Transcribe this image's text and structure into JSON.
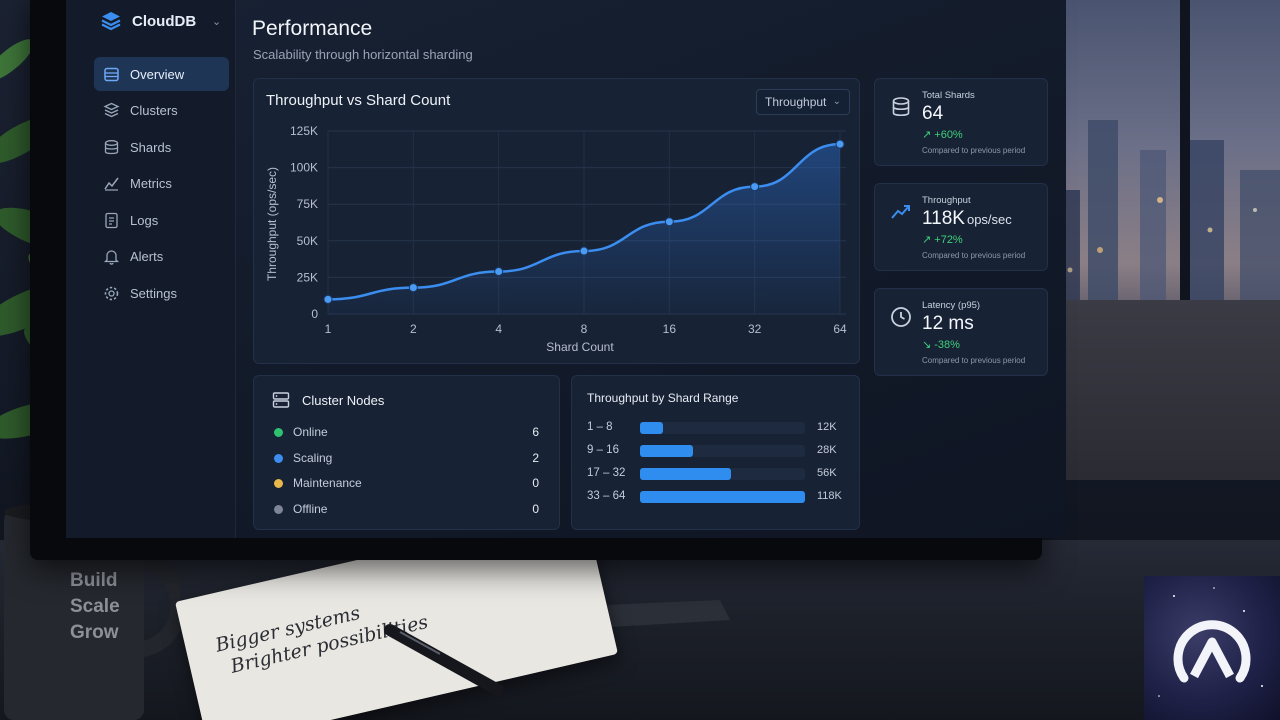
{
  "app": {
    "name": "CloudDB"
  },
  "sidebar": {
    "items": [
      {
        "label": "Overview",
        "icon": "database-table-icon",
        "active": true
      },
      {
        "label": "Clusters",
        "icon": "cluster-icon",
        "active": false
      },
      {
        "label": "Shards",
        "icon": "shards-icon",
        "active": false
      },
      {
        "label": "Metrics",
        "icon": "metrics-icon",
        "active": false
      },
      {
        "label": "Logs",
        "icon": "logs-icon",
        "active": false
      },
      {
        "label": "Alerts",
        "icon": "bell-icon",
        "active": false
      },
      {
        "label": "Settings",
        "icon": "gear-icon",
        "active": false
      }
    ]
  },
  "header": {
    "title": "Performance",
    "subtitle": "Scalability through horizontal sharding"
  },
  "throughput_chart": {
    "title": "Throughput vs Shard Count",
    "dropdown_value": "Throughput"
  },
  "chart_data": {
    "type": "area",
    "title": "Throughput vs Shard Count",
    "xlabel": "Shard Count",
    "ylabel": "Throughput (ops/sec)",
    "categories": [
      "1",
      "2",
      "4",
      "8",
      "16",
      "32",
      "64"
    ],
    "values": [
      10000,
      18000,
      29000,
      43000,
      63000,
      87000,
      116000
    ],
    "yticks": [
      "0",
      "25K",
      "50K",
      "75K",
      "100K",
      "125K"
    ],
    "ylim": [
      0,
      125000
    ],
    "grid": true,
    "color": "#3b8ef0"
  },
  "kpis": [
    {
      "label": "Total Shards",
      "value": "64",
      "unit": "",
      "delta": "↗ +60%",
      "note": "Compared to previous period",
      "icon": "database-icon"
    },
    {
      "label": "Throughput",
      "value": "118K",
      "unit": "ops/sec",
      "delta": "↗ +72%",
      "note": "Compared to previous period",
      "icon": "trend-up-icon"
    },
    {
      "label": "Latency (p95)",
      "value": "12 ms",
      "unit": "",
      "delta": "↘ -38%",
      "note": "Compared to previous period",
      "icon": "clock-icon"
    }
  ],
  "cluster_nodes": {
    "title": "Cluster Nodes",
    "rows": [
      {
        "label": "Online",
        "count": "6",
        "color": "#2ec16f"
      },
      {
        "label": "Scaling",
        "count": "2",
        "color": "#3b8ef0"
      },
      {
        "label": "Maintenance",
        "count": "0",
        "color": "#e8b94a"
      },
      {
        "label": "Offline",
        "count": "0",
        "color": "#7d8596"
      }
    ]
  },
  "shard_range": {
    "title": "Throughput by Shard Range",
    "rows": [
      {
        "label": "1 – 8",
        "value": "12K",
        "fraction": 0.14
      },
      {
        "label": "9 – 16",
        "value": "28K",
        "fraction": 0.32
      },
      {
        "label": "17 – 32",
        "value": "56K",
        "fraction": 0.55
      },
      {
        "label": "33 – 64",
        "value": "118K",
        "fraction": 1.0
      }
    ]
  },
  "desk": {
    "mug_text": [
      "Build",
      "Scale",
      "Grow"
    ],
    "notepad_text": [
      "Bigger systems",
      "Brighter possibilities"
    ]
  }
}
